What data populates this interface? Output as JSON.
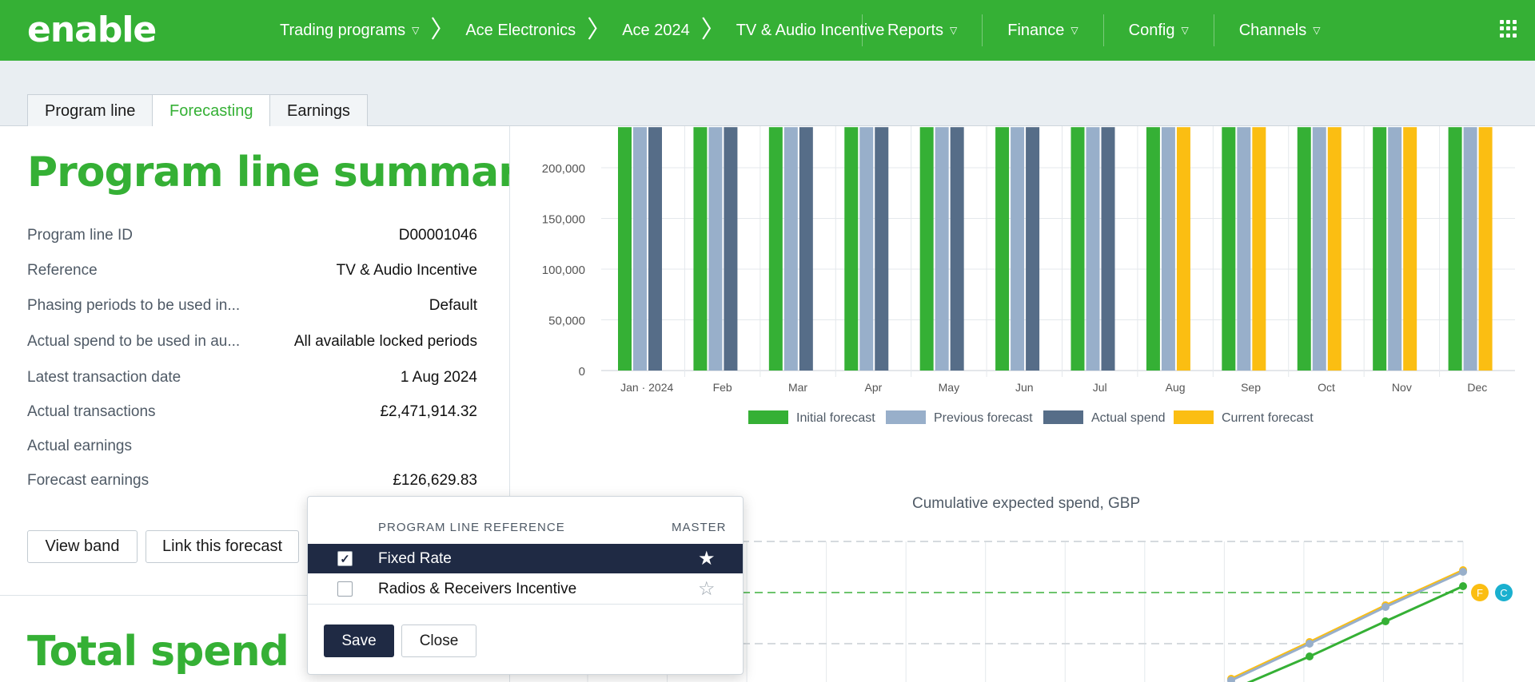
{
  "app": {
    "logo": "enable"
  },
  "breadcrumbs": [
    "Trading programs",
    "Ace Electronics",
    "Ace 2024",
    "TV & Audio Incentive"
  ],
  "menus": [
    "Reports",
    "Finance",
    "Config",
    "Channels"
  ],
  "tabs": [
    "Program line",
    "Forecasting",
    "Earnings"
  ],
  "active_tab": "Forecasting",
  "summary": {
    "title": "Program line summary",
    "rows": [
      {
        "label": "Program line ID",
        "value": "D00001046"
      },
      {
        "label": "Reference",
        "value": "TV & Audio Incentive"
      },
      {
        "label": "Phasing periods to be used in...",
        "value": "Default"
      },
      {
        "label": "Actual spend to be used in au...",
        "value": "All available locked periods"
      },
      {
        "label": "Latest transaction date",
        "value": "1 Aug 2024"
      },
      {
        "label": "Actual transactions",
        "value": "£2,471,914.32"
      },
      {
        "label": "Actual earnings",
        "value": ""
      },
      {
        "label": "Forecast earnings",
        "value": "£126,629.83"
      }
    ],
    "view_band_button": "View band",
    "link_forecast_button": "Link this forecast"
  },
  "total_spend": {
    "title": "Total spend"
  },
  "popup": {
    "col_reference": "PROGRAM LINE REFERENCE",
    "col_master": "MASTER",
    "items": [
      {
        "label": "Fixed Rate",
        "checked": true,
        "master": true
      },
      {
        "label": "Radios & Receivers Incentive",
        "checked": false,
        "master": false
      }
    ],
    "save_button": "Save",
    "close_button": "Close"
  },
  "chart_data": [
    {
      "type": "bar",
      "title": "",
      "categories": [
        "Jan · 2024",
        "Feb",
        "Mar",
        "Apr",
        "May",
        "Jun",
        "Jul",
        "Aug",
        "Sep",
        "Oct",
        "Nov",
        "Dec"
      ],
      "y_ticks": [
        "0",
        "50,000",
        "100,000",
        "150,000",
        "200,000"
      ],
      "ylim": [
        0,
        240000
      ],
      "clipped_top": true,
      "grid": true,
      "legend_position": "bottom-center",
      "series": [
        {
          "name": "Initial forecast",
          "color": "#35b035",
          "values": [
            240000,
            240000,
            240000,
            240000,
            240000,
            240000,
            240000,
            240000,
            240000,
            240000,
            240000,
            240000
          ]
        },
        {
          "name": "Previous forecast",
          "color": "#98afca",
          "values": [
            240000,
            240000,
            240000,
            240000,
            240000,
            240000,
            240000,
            240000,
            240000,
            240000,
            240000,
            240000
          ]
        },
        {
          "name": "Actual spend",
          "color": "#566d88",
          "values": [
            240000,
            240000,
            240000,
            240000,
            240000,
            240000,
            240000,
            null,
            null,
            null,
            null,
            null
          ]
        },
        {
          "name": "Current forecast",
          "color": "#fbbe12",
          "values": [
            null,
            null,
            null,
            null,
            null,
            null,
            null,
            240000,
            240000,
            240000,
            240000,
            240000
          ]
        }
      ]
    },
    {
      "type": "line",
      "title": "Cumulative expected spend, GBP",
      "grid": true,
      "markers": [
        "F",
        "C"
      ],
      "marker_colors": [
        "#fbbe12",
        "#1ab0cf"
      ],
      "series": [
        {
          "color": "#fbbe12",
          "values": [
            null,
            null,
            null,
            null,
            null,
            null,
            null,
            null,
            0.24,
            0.44,
            0.66,
            0.9
          ]
        },
        {
          "color": "#98afca",
          "values": [
            null,
            null,
            null,
            null,
            null,
            null,
            null,
            null,
            0.22,
            0.42,
            0.64,
            0.88
          ]
        },
        {
          "color": "#35b035",
          "values": [
            null,
            null,
            null,
            null,
            null,
            null,
            null,
            null,
            0.0,
            0.22,
            0.44,
            0.68
          ]
        }
      ],
      "reference_lines": [
        0.7,
        0.36
      ]
    }
  ]
}
